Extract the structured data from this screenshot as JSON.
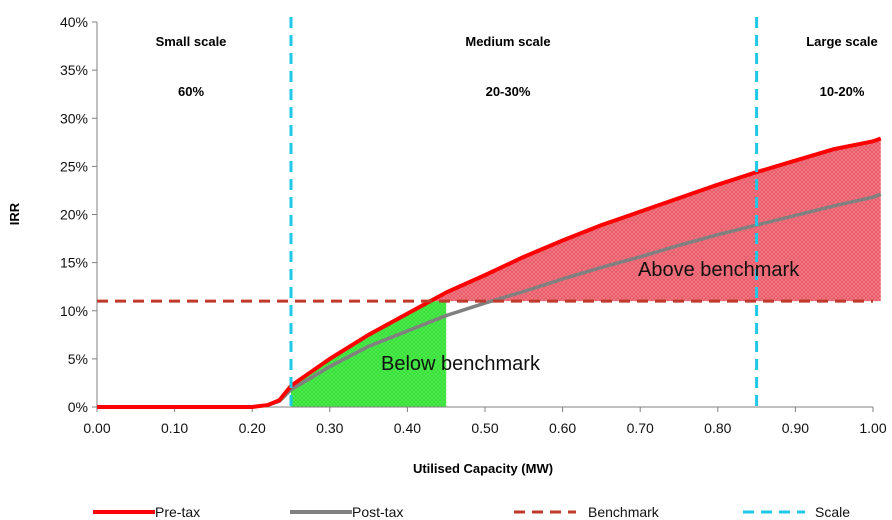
{
  "chart_data": {
    "type": "line",
    "title": "",
    "xlabel": "Utilised Capacity (MW)",
    "ylabel": "IRR",
    "xlim": [
      0,
      1.0
    ],
    "ylim": [
      0,
      40
    ],
    "x_ticks": [
      "0.00",
      "0.10",
      "0.20",
      "0.30",
      "0.40",
      "0.50",
      "0.60",
      "0.70",
      "0.80",
      "0.90",
      "1.00"
    ],
    "y_ticks": [
      "0%",
      "5%",
      "10%",
      "15%",
      "20%",
      "25%",
      "30%",
      "35%",
      "40%"
    ],
    "grid": false,
    "legend_position": "bottom",
    "series": [
      {
        "name": "Pre-tax",
        "color": "#ff0000",
        "x": [
          0.0,
          0.1,
          0.2,
          0.22,
          0.235,
          0.25,
          0.3,
          0.35,
          0.4,
          0.45,
          0.5,
          0.55,
          0.6,
          0.65,
          0.7,
          0.75,
          0.8,
          0.85,
          0.9,
          0.95,
          1.0,
          1.01
        ],
        "values": [
          0.0,
          0.0,
          0.0,
          0.2,
          0.7,
          2.2,
          5.0,
          7.5,
          9.7,
          11.9,
          13.7,
          15.6,
          17.3,
          18.9,
          20.3,
          21.7,
          23.1,
          24.4,
          25.6,
          26.8,
          27.6,
          27.9
        ]
      },
      {
        "name": "Post-tax",
        "color": "#808080",
        "x": [
          0.0,
          0.1,
          0.2,
          0.22,
          0.235,
          0.25,
          0.3,
          0.35,
          0.4,
          0.45,
          0.5,
          0.55,
          0.6,
          0.65,
          0.7,
          0.75,
          0.8,
          0.85,
          0.9,
          0.95,
          1.0,
          1.01
        ],
        "values": [
          0.0,
          0.0,
          0.0,
          0.2,
          0.6,
          1.8,
          4.2,
          6.3,
          7.9,
          9.5,
          10.8,
          12.0,
          13.3,
          14.5,
          15.6,
          16.8,
          17.9,
          18.9,
          19.9,
          20.9,
          21.8,
          22.1
        ]
      }
    ],
    "benchmark": {
      "name": "Benchmark",
      "value": 11,
      "color": "#c0392b"
    },
    "scale": {
      "name": "Scale",
      "x_values": [
        0.25,
        0.85
      ],
      "color": "#1ec8e6"
    },
    "regions": [
      {
        "name": "Small scale",
        "share": "60%"
      },
      {
        "name": "Medium scale",
        "share": "20-30%"
      },
      {
        "name": "Large scale",
        "share": "10-20%"
      }
    ],
    "shaded_areas": [
      {
        "label": "Below benchmark",
        "x_from": 0.25,
        "x_to": 0.45,
        "color": "#33ee33"
      },
      {
        "label": "Above benchmark",
        "x_from": 0.43,
        "x_to": 1.01,
        "color": "#ee4455"
      }
    ]
  }
}
